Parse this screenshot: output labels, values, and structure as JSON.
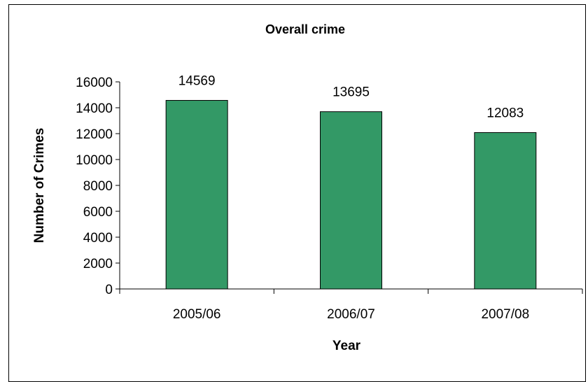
{
  "chart_data": {
    "type": "bar",
    "title": "Overall crime",
    "xlabel": "Year",
    "ylabel": "Number of Crimes",
    "categories": [
      "2005/06",
      "2006/07",
      "2007/08"
    ],
    "values": [
      14569,
      13695,
      12083
    ],
    "ylim": [
      0,
      16000
    ],
    "yticks": [
      0,
      2000,
      4000,
      6000,
      8000,
      10000,
      12000,
      14000,
      16000
    ],
    "grid": false,
    "legend": "none",
    "bar_color": "#339966",
    "data_labels": [
      "14569",
      "13695",
      "12083"
    ]
  }
}
